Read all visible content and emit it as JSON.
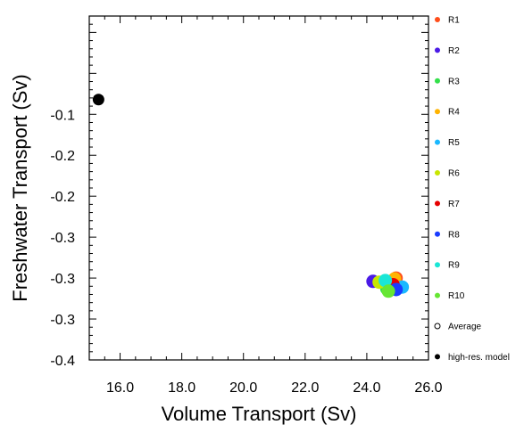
{
  "chart_data": {
    "type": "scatter",
    "xlabel": "Volume Transport (Sv)",
    "ylabel": "Freshwater Transport (Sv)",
    "xlim": [
      15.0,
      26.0
    ],
    "ylim": [
      -0.4,
      0.02
    ],
    "x_major_ticks": [
      16.0,
      18.0,
      20.0,
      22.0,
      24.0,
      26.0
    ],
    "x_tick_labels": [
      "16.0",
      "18.0",
      "20.0",
      "22.0",
      "24.0",
      "26.0"
    ],
    "y_major_ticks": [
      -0.1,
      -0.15,
      -0.2,
      -0.25,
      -0.3,
      -0.35,
      -0.4
    ],
    "y_tick_labels": [
      "-0.1",
      "-0.2",
      "-0.2",
      "-0.3",
      "-0.3",
      "-0.3",
      "-0.4"
    ],
    "grid": false,
    "legend_position": "right",
    "series": [
      {
        "name": "R1",
        "color": "#ff4d1a",
        "filled": true,
        "x": [
          24.95
        ],
        "y": [
          -0.3
        ]
      },
      {
        "name": "R2",
        "color": "#4a1ae6",
        "filled": true,
        "x": [
          24.2
        ],
        "y": [
          -0.304
        ]
      },
      {
        "name": "R3",
        "color": "#33e04a",
        "filled": true,
        "x": [
          24.65
        ],
        "y": [
          -0.313
        ]
      },
      {
        "name": "R4",
        "color": "#ffb300",
        "filled": true,
        "x": [
          24.9
        ],
        "y": [
          -0.301
        ]
      },
      {
        "name": "R5",
        "color": "#1ab8ff",
        "filled": true,
        "x": [
          25.15
        ],
        "y": [
          -0.311
        ]
      },
      {
        "name": "R6",
        "color": "#c8e600",
        "filled": true,
        "x": [
          24.4
        ],
        "y": [
          -0.305
        ]
      },
      {
        "name": "R7",
        "color": "#e60000",
        "filled": true,
        "x": [
          24.85
        ],
        "y": [
          -0.308
        ]
      },
      {
        "name": "R8",
        "color": "#1a3cff",
        "filled": true,
        "x": [
          24.95
        ],
        "y": [
          -0.314
        ]
      },
      {
        "name": "R9",
        "color": "#1ae6d6",
        "filled": true,
        "x": [
          24.6
        ],
        "y": [
          -0.303
        ]
      },
      {
        "name": "R10",
        "color": "#66e633",
        "filled": true,
        "x": [
          24.7
        ],
        "y": [
          -0.316
        ]
      },
      {
        "name": "Average",
        "color": "#000000",
        "filled": false,
        "x": [],
        "y": []
      },
      {
        "name": "high-res. model",
        "color": "#000000",
        "filled": true,
        "x": [
          15.3
        ],
        "y": [
          -0.082
        ]
      }
    ]
  }
}
